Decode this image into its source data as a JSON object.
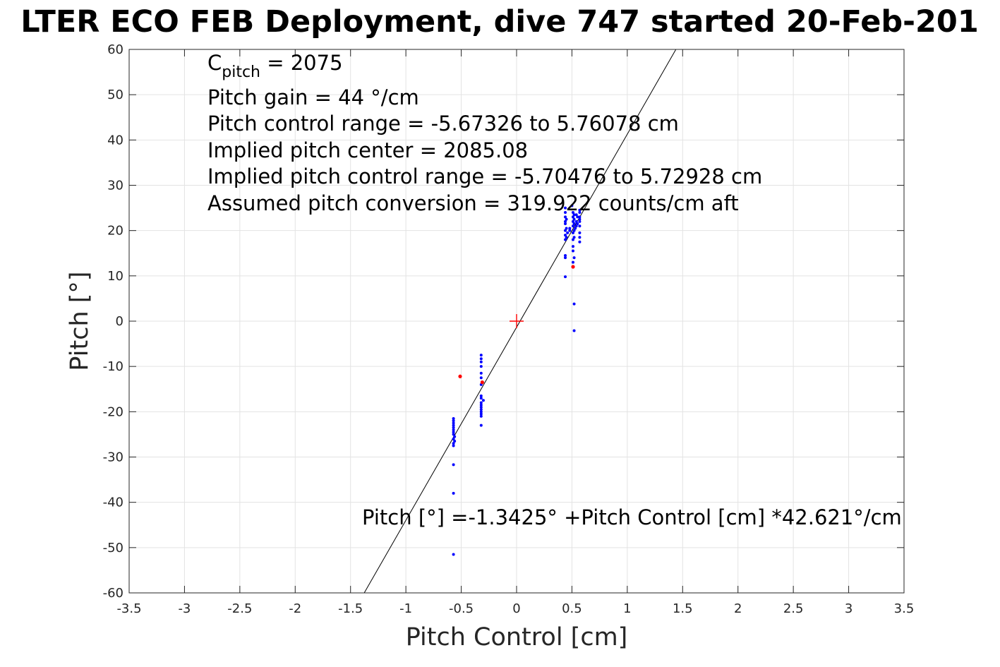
{
  "chart_data": {
    "type": "scatter",
    "title": "LTER ECO FEB Deployment, dive 747 started 20-Feb-201",
    "xlabel": "Pitch Control [cm]",
    "ylabel": "Pitch [°]",
    "xlim": [
      -3.5,
      3.5
    ],
    "ylim": [
      -60,
      60
    ],
    "xticks": [
      "-3.5",
      "-3",
      "-2.5",
      "-2",
      "-1.5",
      "-1",
      "-0.5",
      "0",
      "0.5",
      "1",
      "1.5",
      "2",
      "2.5",
      "3",
      "3.5"
    ],
    "yticks": [
      "60",
      "50",
      "40",
      "30",
      "20",
      "10",
      "0",
      "-10",
      "-20",
      "-30",
      "-40",
      "-50",
      "-60"
    ],
    "grid": true,
    "colors": {
      "points": "#0000ff",
      "outliers": "#ff0000",
      "fit_line": "#000000",
      "center_marker": "#ff0000"
    },
    "series": [
      {
        "color": "#0000ff",
        "points": [
          [
            -0.57,
            -21.5
          ],
          [
            -0.57,
            -22.0
          ],
          [
            -0.57,
            -22.5
          ],
          [
            -0.57,
            -23.0
          ],
          [
            -0.57,
            -23.5
          ],
          [
            -0.57,
            -24.0
          ],
          [
            -0.57,
            -24.5
          ],
          [
            -0.57,
            -25.0
          ],
          [
            -0.56,
            -25.5
          ],
          [
            -0.57,
            -26.0
          ],
          [
            -0.56,
            -26.5
          ],
          [
            -0.57,
            -27.0
          ],
          [
            -0.57,
            -27.5
          ],
          [
            -0.57,
            -31.7
          ],
          [
            -0.57,
            -38.0
          ],
          [
            -0.57,
            -51.5
          ],
          [
            -0.32,
            -7.5
          ],
          [
            -0.32,
            -8.3
          ],
          [
            -0.32,
            -9.0
          ],
          [
            -0.32,
            -10.0
          ],
          [
            -0.32,
            -11.5
          ],
          [
            -0.32,
            -12.5
          ],
          [
            -0.32,
            -14.0
          ],
          [
            -0.32,
            -16.5
          ],
          [
            -0.32,
            -17.0
          ],
          [
            -0.3,
            -17.5
          ],
          [
            -0.32,
            -18.0
          ],
          [
            -0.32,
            -18.5
          ],
          [
            -0.32,
            -19.0
          ],
          [
            -0.32,
            -19.5
          ],
          [
            -0.32,
            -20.0
          ],
          [
            -0.32,
            -20.5
          ],
          [
            -0.32,
            -21.0
          ],
          [
            -0.32,
            -23.0
          ],
          [
            0.44,
            25.0
          ],
          [
            0.44,
            24.0
          ],
          [
            0.44,
            23.0
          ],
          [
            0.45,
            22.5
          ],
          [
            0.44,
            22.0
          ],
          [
            0.44,
            21.5
          ],
          [
            0.45,
            20.5
          ],
          [
            0.44,
            20.0
          ],
          [
            0.46,
            19.5
          ],
          [
            0.44,
            19.0
          ],
          [
            0.45,
            18.5
          ],
          [
            0.44,
            18.0
          ],
          [
            0.44,
            14.5
          ],
          [
            0.44,
            14.0
          ],
          [
            0.44,
            9.8
          ],
          [
            0.48,
            20.5
          ],
          [
            0.48,
            20.0
          ],
          [
            0.5,
            25.5
          ],
          [
            0.51,
            24.0
          ],
          [
            0.52,
            23.5
          ],
          [
            0.51,
            23.0
          ],
          [
            0.52,
            22.5
          ],
          [
            0.51,
            22.0
          ],
          [
            0.52,
            21.5
          ],
          [
            0.51,
            21.0
          ],
          [
            0.53,
            20.5
          ],
          [
            0.52,
            20.0
          ],
          [
            0.51,
            19.5
          ],
          [
            0.52,
            18.5
          ],
          [
            0.51,
            18.0
          ],
          [
            0.51,
            16.5
          ],
          [
            0.51,
            15.5
          ],
          [
            0.52,
            14.0
          ],
          [
            0.51,
            13.0
          ],
          [
            0.54,
            23.5
          ],
          [
            0.55,
            23.0
          ],
          [
            0.54,
            22.0
          ],
          [
            0.55,
            21.5
          ],
          [
            0.54,
            21.0
          ],
          [
            0.57,
            24.5
          ],
          [
            0.57,
            24.0
          ],
          [
            0.57,
            23.0
          ],
          [
            0.57,
            22.5
          ],
          [
            0.57,
            22.0
          ],
          [
            0.57,
            21.0
          ],
          [
            0.57,
            19.5
          ],
          [
            0.57,
            18.5
          ],
          [
            0.57,
            17.5
          ],
          [
            0.52,
            3.8
          ],
          [
            0.52,
            -2.1
          ]
        ]
      },
      {
        "color": "#ff0000",
        "points": [
          [
            -0.51,
            -12.2
          ],
          [
            -0.31,
            -13.5
          ],
          [
            0.51,
            12.0
          ]
        ]
      }
    ],
    "fit_line": {
      "intercept": -1.3425,
      "slope": 42.621
    },
    "center_marker": [
      0,
      0
    ],
    "annotations": {
      "cpitch_main": "C",
      "cpitch_sub": "pitch",
      "cpitch_value": " = 2075",
      "lines": [
        "Pitch gain = 44 °/cm",
        "Pitch control range = -5.67326 to 5.76078 cm",
        "Implied pitch center = 2085.08",
        "Implied pitch control range = -5.70476 to 5.72928 cm",
        "Assumed pitch conversion = 319.922 counts/cm aft"
      ],
      "fit_equation": "Pitch [°] =-1.3425° +Pitch Control [cm] *42.621°/cm"
    }
  }
}
